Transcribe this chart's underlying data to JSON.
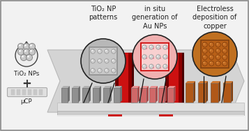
{
  "bg_color": "#f2f2f2",
  "border_color": "#888888",
  "title1": "TiO₂ NP\npatterns",
  "title2": "in situ\ngeneration of\nAu NPs",
  "title3": "Electroless\ndeposition of\ncopper",
  "label_tio2": "TiO₂ NPs",
  "label_ucp": "μCP",
  "text_color": "#222222",
  "font_size_main": 7.0,
  "font_size_small": 6.2,
  "arrow_gray": "#d0d0d0",
  "arrow_gray_edge": "#b8b8b8",
  "red_bright": "#cc1111",
  "red_dark": "#8b0000",
  "red_mid": "#aa0000",
  "bar_gray": "#888888",
  "bar_gray_light": "#aaaaaa",
  "bar_pink": "#d06060",
  "bar_pink_light": "#e88080",
  "bar_copper": "#b05818",
  "bar_copper_light": "#d07828",
  "substrate_top": "#e0e0e0",
  "substrate_side": "#c0c0c0",
  "substrate_face": "#d8d8d8",
  "sphere_face": "#d8d8d8",
  "sphere_edge": "#888888",
  "copper_sphere_face": "#c06820",
  "copper_sphere_edge": "#7a3a08",
  "circle1_bg": "#b8b8b8",
  "circle2_bg": "#f0b8b8",
  "circle3_bg": "#b05818",
  "circle_edge": "#222222",
  "inner_rect1": "#c8c8c8",
  "inner_rect2": "#f8c8c8",
  "inner_rect2_edge": "#cc0000",
  "inner_rect3": "#b86020",
  "inner_rect3_edge": "#7a3a08",
  "drop_face": "#eeeeee",
  "drop_edge": "#444444",
  "stamp_face": "#e0e0e0",
  "stamp_edge": "#aaaaaa",
  "stamp_ridge": "#c8c8c8"
}
